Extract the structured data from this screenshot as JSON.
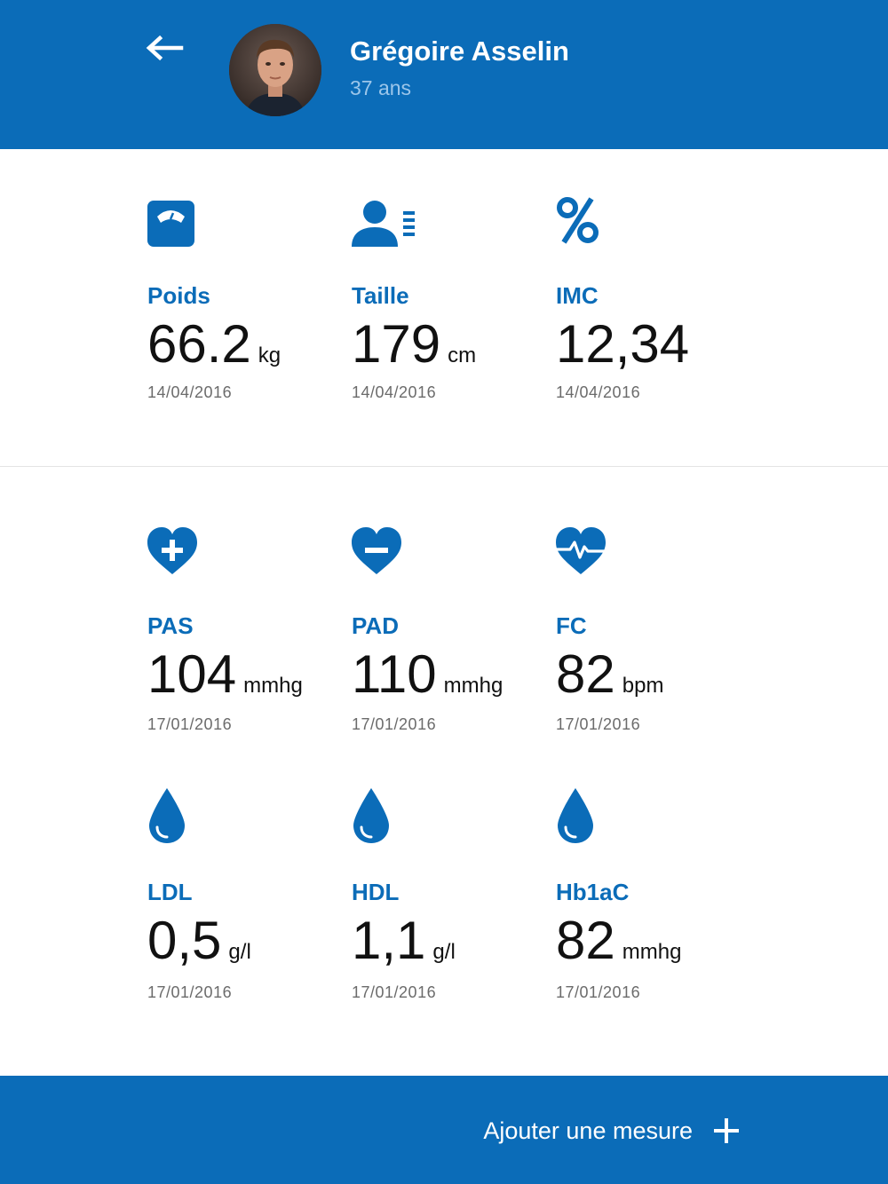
{
  "header": {
    "name": "Grégoire Asselin",
    "age": "37 ans",
    "back_icon": "arrow-left-icon"
  },
  "metrics": {
    "poids": {
      "label": "Poids",
      "value": "66.2",
      "unit": "kg",
      "date": "14/04/2016",
      "icon": "scale-icon"
    },
    "taille": {
      "label": "Taille",
      "value": "179",
      "unit": "cm",
      "date": "14/04/2016",
      "icon": "person-height-icon"
    },
    "imc": {
      "label": "IMC",
      "value": "12,34",
      "unit": "",
      "date": "14/04/2016",
      "icon": "percent-icon"
    },
    "pas": {
      "label": "PAS",
      "value": "104",
      "unit": "mmhg",
      "date": "17/01/2016",
      "icon": "heart-plus-icon"
    },
    "pad": {
      "label": "PAD",
      "value": "110",
      "unit": "mmhg",
      "date": "17/01/2016",
      "icon": "heart-minus-icon"
    },
    "fc": {
      "label": "FC",
      "value": "82",
      "unit": "bpm",
      "date": "17/01/2016",
      "icon": "heart-pulse-icon"
    },
    "ldl": {
      "label": "LDL",
      "value": "0,5",
      "unit": "g/l",
      "date": "17/01/2016",
      "icon": "drop-icon"
    },
    "hdl": {
      "label": "HDL",
      "value": "1,1",
      "unit": "g/l",
      "date": "17/01/2016",
      "icon": "drop-icon"
    },
    "hb1ac": {
      "label": "Hb1aC",
      "value": "82",
      "unit": "mmhg",
      "date": "17/01/2016",
      "icon": "drop-icon"
    }
  },
  "footer": {
    "add_label": "Ajouter une mesure",
    "add_icon": "plus-icon"
  },
  "colors": {
    "primary": "#0b6cb8",
    "age_text": "#9cc6ea",
    "date_text": "#6b6b6b"
  }
}
